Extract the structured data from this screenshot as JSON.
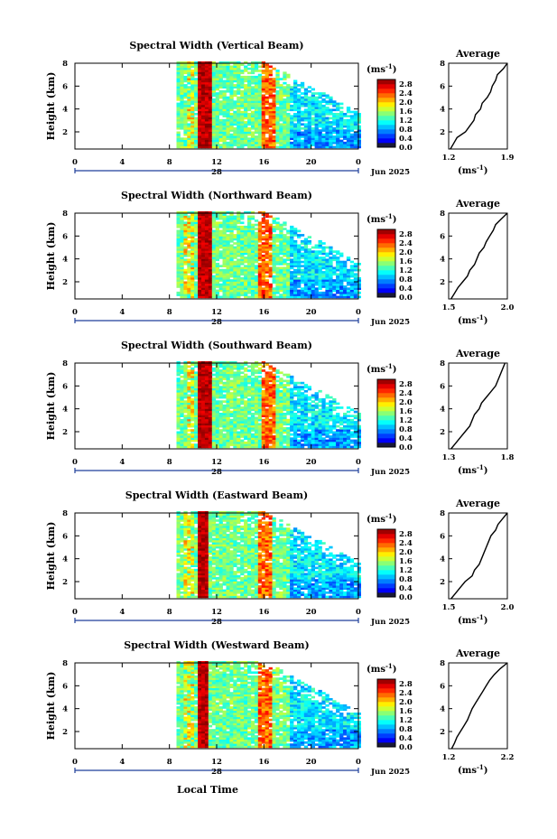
{
  "common": {
    "ylabel": "Height (km)",
    "y_ticks": [
      "2",
      "4",
      "6",
      "8"
    ],
    "x_ticks": [
      "0",
      "4",
      "8",
      "12",
      "16",
      "20",
      "0"
    ],
    "day_label": "28",
    "month_label": "Jun 2025",
    "colorbar_unit": "(ms",
    "colorbar_unit_exp": "-1",
    "colorbar_unit_close": ")",
    "colorbar_ticks": [
      "2.8",
      "2.4",
      "2.0",
      "1.6",
      "1.2",
      "0.8",
      "0.4",
      "0.0"
    ],
    "colorbar_min": 0.0,
    "colorbar_max": 3.0,
    "average_title": "Average",
    "average_xlabel": "(ms",
    "average_xlabel_exp": "-1",
    "average_xlabel_close": ")",
    "xlabel": "Local Time"
  },
  "chart_data": [
    {
      "type": "heatmap",
      "title": "Spectral Width (Vertical Beam)",
      "x_range_hours": [
        0,
        24
      ],
      "y_range_km": [
        0.5,
        8
      ],
      "data_start_hour": 8.6,
      "high_band_hours": [
        10.3,
        11.4
      ],
      "secondary_band_hour": 16.2,
      "avg_profile": {
        "xlim": [
          1.2,
          1.9
        ],
        "xticks": [
          "1.2",
          "1.9"
        ],
        "height_km": [
          0.5,
          1,
          1.5,
          2,
          2.5,
          3,
          3.5,
          4,
          4.5,
          5,
          5.5,
          6,
          6.5,
          7,
          7.5,
          8
        ],
        "values": [
          1.22,
          1.26,
          1.3,
          1.4,
          1.45,
          1.5,
          1.52,
          1.58,
          1.6,
          1.66,
          1.7,
          1.72,
          1.76,
          1.78,
          1.85,
          1.9
        ]
      }
    },
    {
      "type": "heatmap",
      "title": "Spectral Width (Northward Beam)",
      "x_range_hours": [
        0,
        24
      ],
      "y_range_km": [
        0.5,
        8
      ],
      "data_start_hour": 8.6,
      "high_band_hours": [
        10.2,
        11.4
      ],
      "secondary_band_hour": 16.1,
      "avg_profile": {
        "xlim": [
          1.5,
          2.0
        ],
        "xticks": [
          "1.5",
          "2.0"
        ],
        "height_km": [
          0.5,
          1,
          1.5,
          2,
          2.5,
          3,
          3.5,
          4,
          4.5,
          5,
          5.5,
          6,
          6.5,
          7,
          7.5,
          8
        ],
        "values": [
          1.52,
          1.55,
          1.58,
          1.62,
          1.66,
          1.68,
          1.72,
          1.74,
          1.76,
          1.8,
          1.82,
          1.85,
          1.88,
          1.9,
          1.95,
          2.0
        ]
      }
    },
    {
      "type": "heatmap",
      "title": "Spectral Width (Southward Beam)",
      "x_range_hours": [
        0,
        24
      ],
      "y_range_km": [
        0.5,
        8
      ],
      "data_start_hour": 8.6,
      "high_band_hours": [
        10.4,
        11.5
      ],
      "secondary_band_hour": 16.2,
      "avg_profile": {
        "xlim": [
          1.3,
          1.8
        ],
        "xticks": [
          "1.3",
          "1.8"
        ],
        "height_km": [
          0.5,
          1,
          1.5,
          2,
          2.5,
          3,
          3.5,
          4,
          4.5,
          5,
          5.5,
          6,
          6.5,
          7,
          7.5,
          8
        ],
        "values": [
          1.32,
          1.36,
          1.4,
          1.44,
          1.48,
          1.5,
          1.52,
          1.56,
          1.58,
          1.62,
          1.66,
          1.7,
          1.72,
          1.74,
          1.76,
          1.78
        ]
      }
    },
    {
      "type": "heatmap",
      "title": "Spectral Width (Eastward Beam)",
      "x_range_hours": [
        0,
        24
      ],
      "y_range_km": [
        0.5,
        8
      ],
      "data_start_hour": 8.6,
      "high_band_hours": [
        10.2,
        11.3
      ],
      "secondary_band_hour": 16.1,
      "avg_profile": {
        "xlim": [
          1.5,
          2.0
        ],
        "xticks": [
          "1.5",
          "2.0"
        ],
        "height_km": [
          0.5,
          1,
          1.5,
          2,
          2.5,
          3,
          3.5,
          4,
          4.5,
          5,
          5.5,
          6,
          6.5,
          7,
          7.5,
          8
        ],
        "values": [
          1.52,
          1.56,
          1.6,
          1.64,
          1.7,
          1.72,
          1.76,
          1.78,
          1.8,
          1.82,
          1.84,
          1.86,
          1.9,
          1.92,
          1.96,
          2.0
        ]
      }
    },
    {
      "type": "heatmap",
      "title": "Spectral Width (Westward Beam)",
      "x_range_hours": [
        0,
        24
      ],
      "y_range_km": [
        0.5,
        8
      ],
      "data_start_hour": 8.6,
      "high_band_hours": [
        10.2,
        11.3
      ],
      "secondary_band_hour": 16.1,
      "avg_profile": {
        "xlim": [
          1.2,
          2.2
        ],
        "xticks": [
          "1.2",
          "2.2"
        ],
        "height_km": [
          0.5,
          1,
          1.5,
          2,
          2.5,
          3,
          3.5,
          4,
          4.5,
          5,
          5.5,
          6,
          6.5,
          7,
          7.5,
          8
        ],
        "values": [
          1.25,
          1.3,
          1.34,
          1.4,
          1.46,
          1.52,
          1.56,
          1.6,
          1.66,
          1.72,
          1.78,
          1.84,
          1.9,
          1.98,
          2.08,
          2.2
        ]
      }
    }
  ]
}
